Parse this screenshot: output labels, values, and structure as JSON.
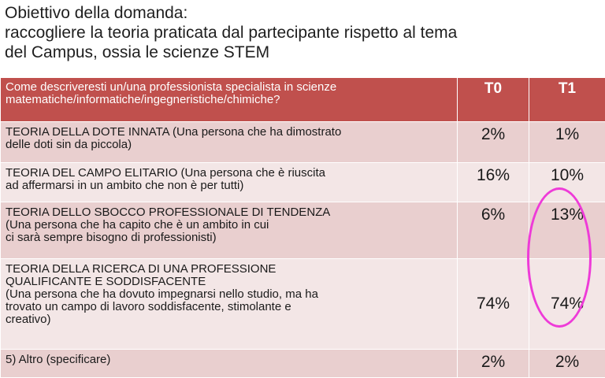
{
  "heading": {
    "line1": "Obiettivo della domanda:",
    "line2": "raccogliere la teoria praticata dal partecipante rispetto al tema",
    "line3": "del Campus, ossia le scienze STEM"
  },
  "table": {
    "question_line1": "Come descriveresti un/una professionista specialista in scienze",
    "question_line2": "matematiche/informatiche/ingegneristiche/chimiche?",
    "col_t0": "T0",
    "col_t1": "T1",
    "rows": [
      {
        "title": "TEORIA DELLA DOTE INNATA",
        "desc_inline": " (Una persona che ha dimostrato",
        "desc_line2": "delle doti sin da piccola)",
        "t0": "2%",
        "t1": "1%"
      },
      {
        "title": "TEORIA DEL CAMPO ELITARIO",
        "desc_inline": " (Una persona che è riuscita",
        "desc_line2": "ad affermarsi in un ambito che non è per tutti)",
        "t0": "16%",
        "t1": "10%"
      },
      {
        "title": "TEORIA DELLO SBOCCO PROFESSIONALE DI TENDENZA",
        "desc_line1": "(Una persona che ha capito che è un ambito in cui",
        "desc_line2": "ci sarà sempre bisogno di professionisti)",
        "t0": "6%",
        "t1": "13%"
      },
      {
        "title_line1": "TEORIA DELLA RICERCA DI UNA PROFESSIONE",
        "title_line2": "QUALIFICANTE E SODDISFACENTE",
        "desc_line1": "(Una persona che ha dovuto impegnarsi nello studio, ma ha",
        "desc_line2": "trovato un campo di lavoro soddisfacente, stimolante e",
        "desc_line3": "creativo)",
        "t0": "74%",
        "t1": "74%"
      },
      {
        "title": "5) Altro (specificare)",
        "t0": "2%",
        "t1": "2%"
      }
    ]
  },
  "colors": {
    "header_bg": "#c0504d",
    "row_odd": "#e9cfcf",
    "row_even": "#f3e6e6",
    "highlight": "#ee3bd8"
  }
}
